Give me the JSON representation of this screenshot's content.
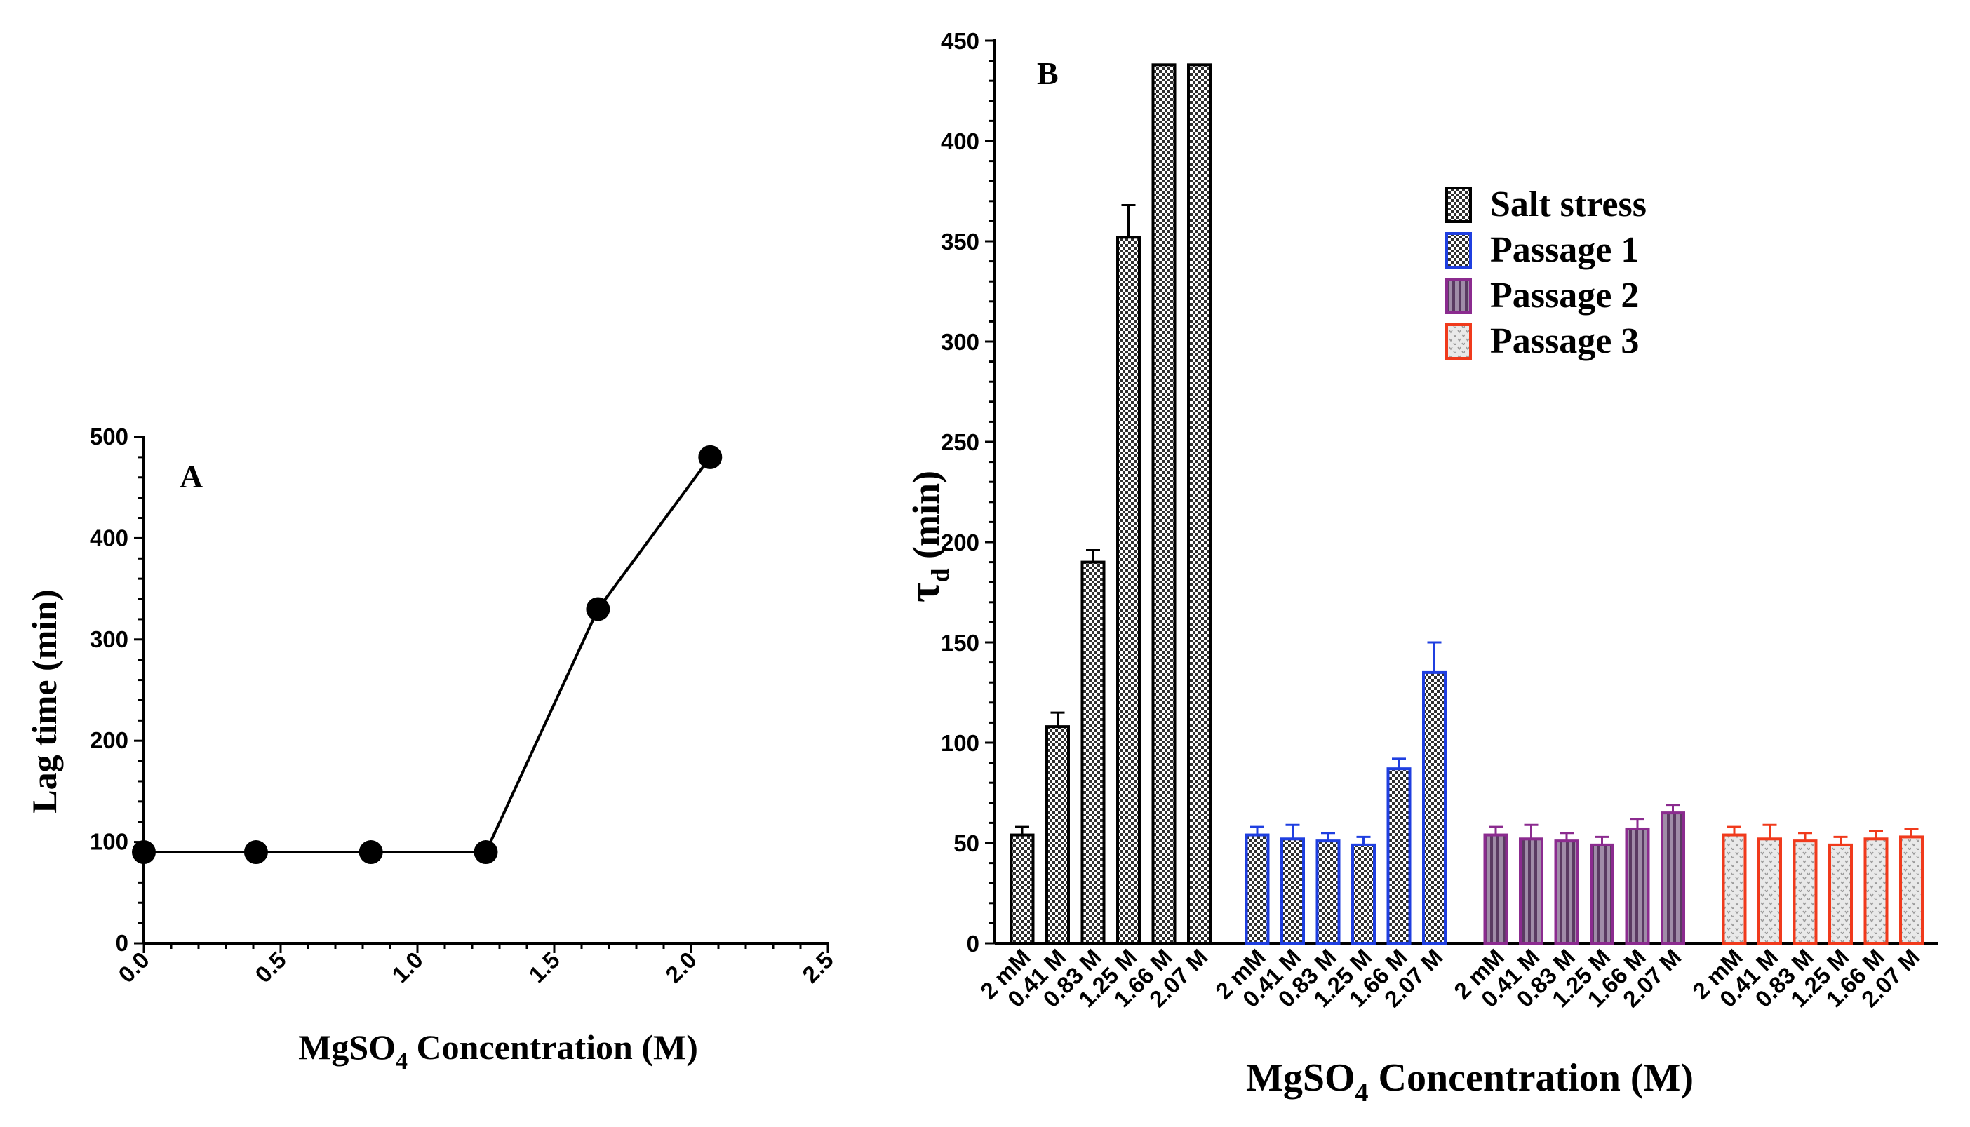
{
  "chart_data": [
    {
      "panel": "A",
      "type": "line",
      "panel_label": "A",
      "xlabel_main": "MgSO",
      "xlabel_sub": "4",
      "xlabel_tail": " Concentration (M)",
      "ylabel": "Lag time (min)",
      "x": [
        0.0,
        0.41,
        0.83,
        1.25,
        1.66,
        2.07
      ],
      "y": [
        90,
        90,
        90,
        90,
        330,
        480
      ],
      "xlim": [
        0,
        2.5
      ],
      "ylim": [
        0,
        500
      ],
      "xticks": [
        "0.0",
        "0.5",
        "1.0",
        "1.5",
        "2.0",
        "2.5"
      ],
      "xtick_values": [
        0,
        0.5,
        1.0,
        1.5,
        2.0,
        2.5
      ],
      "yticks": [
        "0",
        "100",
        "200",
        "300",
        "400",
        "500"
      ],
      "ytick_values": [
        0,
        100,
        200,
        300,
        400,
        500
      ],
      "color": "#000000"
    },
    {
      "panel": "B",
      "type": "bar",
      "panel_label": "B",
      "xlabel_main": "MgSO",
      "xlabel_sub": "4",
      "xlabel_tail": " Concentration (M)",
      "ylabel_main": "τ",
      "ylabel_sub": "d",
      "ylabel_tail": " (min)",
      "ylim": [
        0,
        450
      ],
      "yticks": [
        "0",
        "50",
        "100",
        "150",
        "200",
        "250",
        "300",
        "350",
        "400",
        "450"
      ],
      "ytick_values": [
        0,
        50,
        100,
        150,
        200,
        250,
        300,
        350,
        400,
        450
      ],
      "categories": [
        "2 mM",
        "0.41 M",
        "0.83 M",
        "1.25 M",
        "1.66 M",
        "2.07 M"
      ],
      "legend_position": "top-right",
      "series": [
        {
          "name": "Salt stress",
          "values": [
            54,
            108,
            190,
            352,
            450,
            450
          ],
          "errors": [
            4,
            7,
            6,
            16,
            0,
            0
          ],
          "border": "#000000",
          "pattern": "check",
          "truncated": [
            false,
            false,
            false,
            false,
            true,
            true
          ]
        },
        {
          "name": "Passage 1",
          "values": [
            54,
            52,
            51,
            49,
            87,
            135
          ],
          "errors": [
            4,
            7,
            4,
            4,
            5,
            15
          ],
          "border": "#1f3fe0",
          "pattern": "check"
        },
        {
          "name": "Passage 2",
          "values": [
            54,
            52,
            51,
            49,
            57,
            65
          ],
          "errors": [
            4,
            7,
            4,
            4,
            5,
            4
          ],
          "border": "#8b2b8f",
          "pattern": "stripe"
        },
        {
          "name": "Passage 3",
          "values": [
            54,
            52,
            51,
            49,
            52,
            53
          ],
          "errors": [
            4,
            7,
            4,
            4,
            4,
            4
          ],
          "border": "#f03a1c",
          "pattern": "dots"
        }
      ]
    }
  ]
}
